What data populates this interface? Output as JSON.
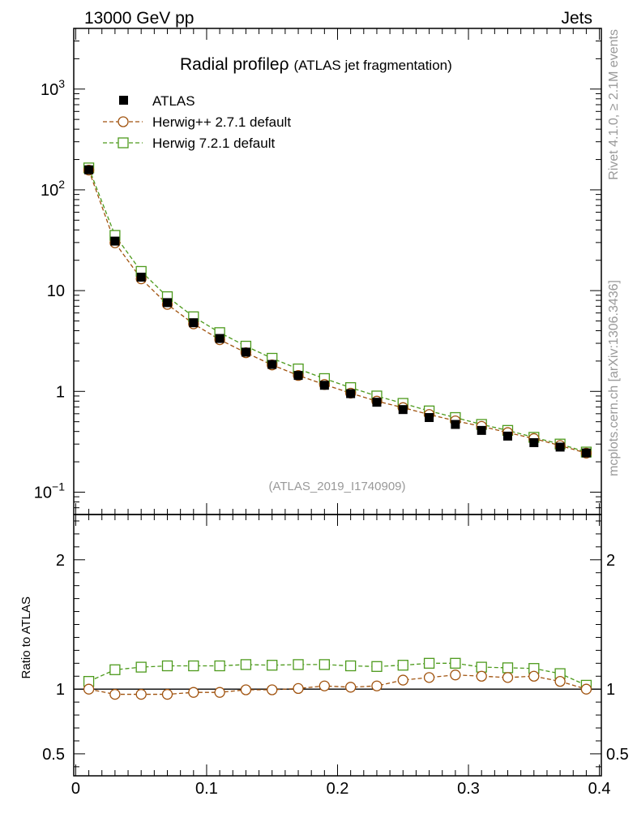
{
  "header": {
    "left": "13000 GeV pp",
    "right": "Jets"
  },
  "side_labels": {
    "rivet": "Rivet 4.1.0, ≥ 2.1M events",
    "mcplots": "mcplots.cern.ch [arXiv:1306.3436]"
  },
  "colors": {
    "atlas": "#000000",
    "herwigpp": "#a0520d",
    "herwig7": "#4d9a1c",
    "frame": "#000000",
    "watermark": "#999999"
  },
  "chart_data": [
    {
      "type": "scatter",
      "title": "Radial profileρ",
      "subtitle": "(ATLAS jet fragmentation)",
      "watermark": "(ATLAS_2019_I1740909)",
      "xlabel": "",
      "ylabel": "",
      "y_scale": "log",
      "xlim": [
        -0.0015,
        0.4015
      ],
      "ylim": [
        0.06,
        4000
      ],
      "y_tick_labels": [
        {
          "value": 0.1,
          "base": "10",
          "exp": "−1"
        },
        {
          "value": 1,
          "base": "1",
          "exp": ""
        },
        {
          "value": 10,
          "base": "10",
          "exp": ""
        },
        {
          "value": 100,
          "base": "10",
          "exp": "2"
        },
        {
          "value": 1000,
          "base": "10",
          "exp": "3"
        }
      ],
      "legend_position": "top-left",
      "x": [
        0.01,
        0.03,
        0.05,
        0.07,
        0.09,
        0.11,
        0.13,
        0.15,
        0.17,
        0.19,
        0.21,
        0.23,
        0.25,
        0.27,
        0.29,
        0.31,
        0.33,
        0.35,
        0.37,
        0.39
      ],
      "series": [
        {
          "name": "ATLAS",
          "marker": "filled-square",
          "color": "#000000",
          "values": [
            158,
            31,
            13.6,
            7.6,
            4.8,
            3.35,
            2.45,
            1.85,
            1.44,
            1.15,
            0.95,
            0.78,
            0.66,
            0.55,
            0.47,
            0.41,
            0.36,
            0.31,
            0.28,
            0.245
          ]
        },
        {
          "name": "Herwig++ 2.7.1 default",
          "marker": "open-circle",
          "color": "#a0520d",
          "values": [
            157,
            29.8,
            13.1,
            7.3,
            4.68,
            3.26,
            2.42,
            1.83,
            1.44,
            1.17,
            0.96,
            0.8,
            0.69,
            0.59,
            0.51,
            0.45,
            0.39,
            0.34,
            0.29,
            0.244
          ]
        },
        {
          "name": "Herwig 7.2.1 default",
          "marker": "open-square",
          "color": "#4d9a1c",
          "values": [
            165,
            35.3,
            15.5,
            8.7,
            5.5,
            3.83,
            2.81,
            2.13,
            1.67,
            1.34,
            1.09,
            0.9,
            0.76,
            0.64,
            0.55,
            0.47,
            0.41,
            0.35,
            0.3,
            0.25
          ]
        }
      ]
    },
    {
      "type": "scatter",
      "title": "",
      "xlabel": "",
      "ylabel": "Ratio to ATLAS",
      "xlim": [
        -0.0015,
        0.4015
      ],
      "ylim": [
        0.33,
        2.35
      ],
      "y_tick_labels": [
        {
          "value": 0.5,
          "label": "0.5"
        },
        {
          "value": 1,
          "label": "1"
        },
        {
          "value": 2,
          "label": "2"
        }
      ],
      "x_tick_labels": [
        {
          "value": 0,
          "label": "0"
        },
        {
          "value": 0.1,
          "label": "0.1"
        },
        {
          "value": 0.2,
          "label": "0.2"
        },
        {
          "value": 0.3,
          "label": "0.3"
        },
        {
          "value": 0.4,
          "label": "0.4"
        }
      ],
      "reference_line": 1,
      "x": [
        0.01,
        0.03,
        0.05,
        0.07,
        0.09,
        0.11,
        0.13,
        0.15,
        0.17,
        0.19,
        0.21,
        0.23,
        0.25,
        0.27,
        0.29,
        0.31,
        0.33,
        0.35,
        0.37,
        0.39
      ],
      "series": [
        {
          "name": "Herwig++ 2.7.1 default",
          "marker": "open-circle",
          "color": "#a0520d",
          "values": [
            1.0,
            0.96,
            0.96,
            0.96,
            0.975,
            0.975,
            0.995,
            0.995,
            1.005,
            1.025,
            1.015,
            1.025,
            1.07,
            1.09,
            1.11,
            1.1,
            1.09,
            1.1,
            1.06,
            1.0
          ]
        },
        {
          "name": "Herwig 7.2.1 default",
          "marker": "open-square",
          "color": "#4d9a1c",
          "values": [
            1.06,
            1.15,
            1.17,
            1.18,
            1.18,
            1.18,
            1.19,
            1.185,
            1.19,
            1.19,
            1.18,
            1.175,
            1.185,
            1.2,
            1.2,
            1.17,
            1.165,
            1.16,
            1.12,
            1.03
          ]
        }
      ]
    }
  ]
}
